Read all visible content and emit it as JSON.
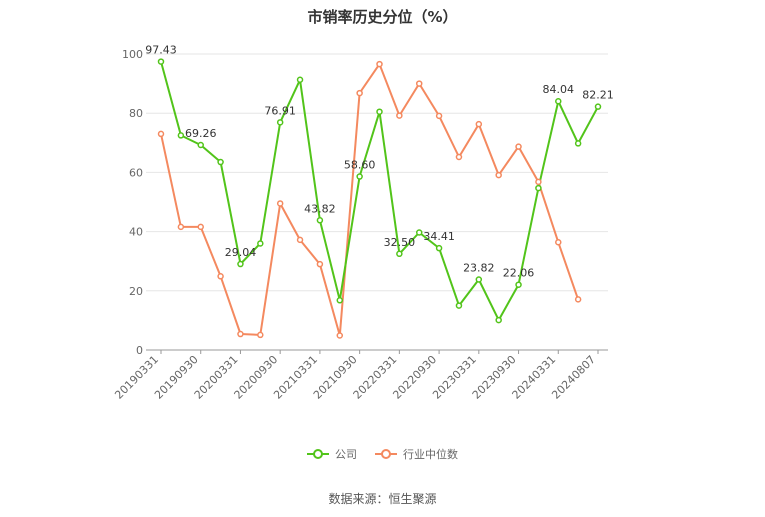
{
  "chart_data": {
    "type": "line",
    "title": "市销率历史分位（%）",
    "x": [
      "20190331",
      "20190630",
      "20190930",
      "20191231",
      "20200331",
      "20200630",
      "20200930",
      "20201231",
      "20210331",
      "20210630",
      "20210930",
      "20211231",
      "20220331",
      "20220630",
      "20220930",
      "20221231",
      "20230331",
      "20230630",
      "20230930",
      "20231231",
      "20240331",
      "20240630",
      "20240807"
    ],
    "x_tick_labels": [
      "20190331",
      "20190930",
      "20200331",
      "20200930",
      "20210331",
      "20210930",
      "20220331",
      "20220930",
      "20230331",
      "20230930",
      "20240331",
      "20240807"
    ],
    "ylim": [
      0,
      100
    ],
    "y_ticks": [
      0,
      20,
      40,
      60,
      80,
      100
    ],
    "grid": true,
    "legend_position": "bottom",
    "series": [
      {
        "name": "公司",
        "color": "#52c41a",
        "values": [
          97.43,
          72.5,
          69.26,
          63.5,
          29.04,
          36.0,
          76.91,
          91.3,
          43.82,
          16.8,
          58.6,
          80.5,
          32.5,
          39.7,
          34.41,
          15.0,
          23.82,
          10.1,
          22.06,
          54.7,
          84.04,
          69.8,
          82.21
        ],
        "labeled": {
          "0": "97.43",
          "2": "69.26",
          "4": "29.04",
          "6": "76.91",
          "8": "43.82",
          "10": "58.60",
          "12": "32.50",
          "14": "34.41",
          "16": "23.82",
          "18": "22.06",
          "20": "84.04",
          "22": "82.21"
        }
      },
      {
        "name": "行业中位数",
        "color": "#f4895f",
        "values": [
          73.0,
          41.6,
          41.6,
          24.9,
          5.4,
          5.1,
          49.5,
          37.2,
          29.0,
          4.9,
          86.8,
          96.6,
          79.2,
          90.0,
          79.1,
          65.2,
          76.3,
          59.1,
          68.7,
          56.8,
          36.4,
          17.1,
          null
        ]
      }
    ]
  },
  "source_text": "数据来源：恒生聚源"
}
